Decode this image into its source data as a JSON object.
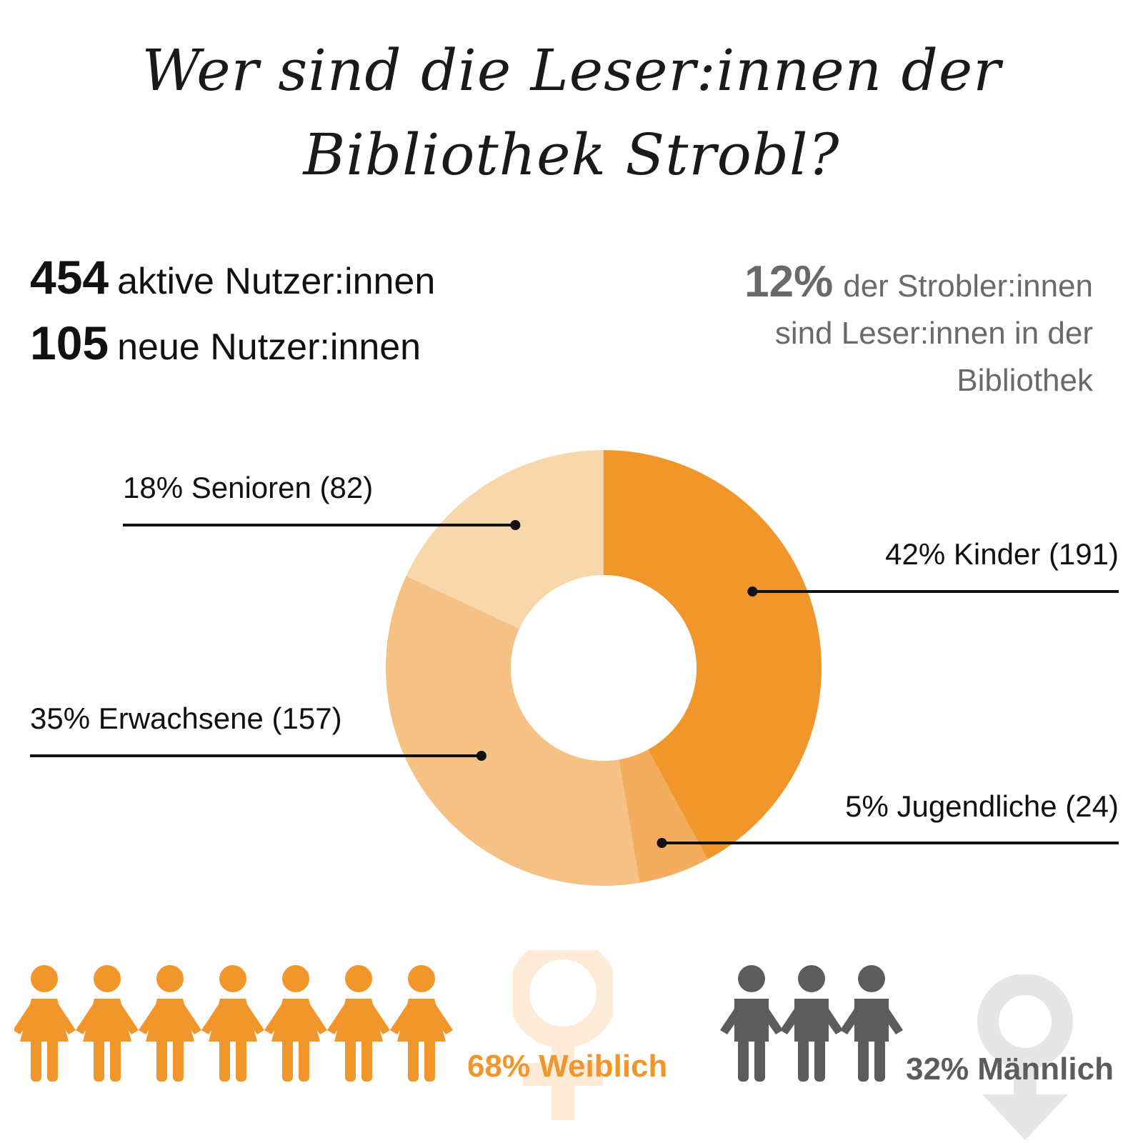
{
  "title": {
    "line1": "Wer sind die Leser:innen der",
    "line2": "Bibliothek Strobl?"
  },
  "stats": {
    "active": {
      "value": "454",
      "label": "aktive Nutzer:innen"
    },
    "new": {
      "value": "105",
      "label": "neue Nutzer:innen"
    }
  },
  "share": {
    "value": "12%",
    "text_line1": "der Strobler:innen",
    "text_line2": "sind Leser:innen in der",
    "text_line3": "Bibliothek"
  },
  "colors": {
    "kinder": "#f0962a",
    "jugendliche": "#f3ad5c",
    "erwachsene": "#f5c185",
    "senioren": "#f8d7ab",
    "female": "#f0962a",
    "female_symbol": "#fdebd8",
    "male": "#5c5c5c",
    "male_symbol": "#e6e6e6"
  },
  "chart_data": {
    "type": "pie",
    "title": "Wer sind die Leser:innen der Bibliothek Strobl?",
    "categories": [
      "Kinder",
      "Jugendliche",
      "Erwachsene",
      "Senioren"
    ],
    "values": [
      191,
      24,
      157,
      82
    ],
    "percent": [
      42,
      5,
      35,
      18
    ],
    "labels": [
      "42% Kinder (191)",
      "5% Jugendliche (24)",
      "35% Erwachsene (157)",
      "18% Senioren (82)"
    ],
    "donut": true
  },
  "gender": {
    "female": {
      "percent": 68,
      "label": "68% Weiblich",
      "icon_count": 7
    },
    "male": {
      "percent": 32,
      "label": "32% Männlich",
      "icon_count": 3
    }
  }
}
